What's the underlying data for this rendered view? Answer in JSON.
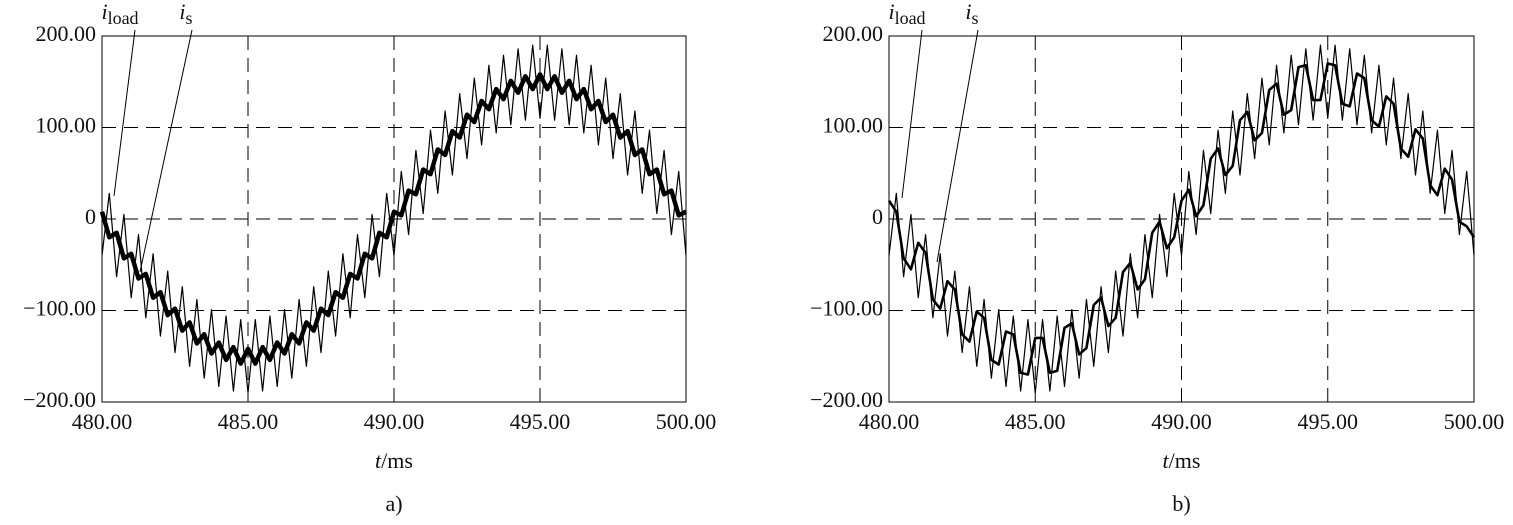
{
  "chart_data": [
    {
      "type": "line",
      "panel_label": "a)",
      "xlabel": "t/ms",
      "x": [
        480,
        480.25,
        480.5,
        480.75,
        481,
        481.25,
        481.5,
        481.75,
        482,
        482.25,
        482.5,
        482.75,
        483,
        483.25,
        483.5,
        483.75,
        484,
        484.25,
        484.5,
        484.75,
        485,
        485.25,
        485.5,
        485.75,
        486,
        486.25,
        486.5,
        486.75,
        487,
        487.25,
        487.5,
        487.75,
        488,
        488.25,
        488.5,
        488.75,
        489,
        489.25,
        489.5,
        489.75,
        490,
        490.25,
        490.5,
        490.75,
        491,
        491.25,
        491.5,
        491.75,
        492,
        492.25,
        492.5,
        492.75,
        493,
        493.25,
        493.5,
        493.75,
        494,
        494.25,
        494.5,
        494.75,
        495,
        495.25,
        495.5,
        495.75,
        496,
        496.25,
        496.5,
        496.75,
        497,
        497.25,
        497.5,
        497.75,
        498,
        498.25,
        498.5,
        498.75,
        499,
        499.25,
        499.5,
        499.75,
        500
      ],
      "series": [
        {
          "name": "iload",
          "color": "#000000",
          "values": [
            -40,
            28,
            -63,
            5,
            -86,
            -17,
            -108,
            -38,
            -128,
            -57,
            -146,
            -74,
            -161,
            -88,
            -174,
            -99,
            -183,
            -106,
            -188,
            -110,
            -190,
            -110,
            -188,
            -106,
            -183,
            -99,
            -174,
            -88,
            -161,
            -74,
            -146,
            -57,
            -128,
            -38,
            -108,
            -17,
            -86,
            5,
            -63,
            28,
            -40,
            52,
            -17,
            75,
            6,
            97,
            28,
            118,
            48,
            137,
            66,
            154,
            81,
            168,
            94,
            179,
            103,
            186,
            108,
            190,
            110,
            190,
            108,
            186,
            103,
            179,
            94,
            168,
            81,
            154,
            66,
            137,
            48,
            118,
            28,
            97,
            6,
            75,
            -17,
            52,
            -40
          ]
        },
        {
          "name": "is",
          "color": "#000000",
          "values": [
            8,
            -20,
            -15,
            -43,
            -38,
            -65,
            -60,
            -86,
            -80,
            -105,
            -98,
            -122,
            -113,
            -136,
            -126,
            -147,
            -135,
            -154,
            -140,
            -158,
            -142,
            -158,
            -140,
            -154,
            -135,
            -147,
            -126,
            -136,
            -113,
            -122,
            -98,
            -105,
            -80,
            -86,
            -60,
            -65,
            -38,
            -43,
            -15,
            -20,
            8,
            4,
            31,
            27,
            54,
            49,
            76,
            70,
            96,
            89,
            114,
            106,
            129,
            120,
            142,
            131,
            151,
            138,
            156,
            142,
            158,
            142,
            156,
            138,
            151,
            131,
            142,
            120,
            129,
            106,
            114,
            89,
            96,
            70,
            76,
            49,
            54,
            27,
            31,
            4,
            8
          ]
        }
      ],
      "xlim": [
        480,
        500
      ],
      "ylim": [
        -200,
        200
      ],
      "xticks": [
        {
          "value": 480,
          "label": "480.00"
        },
        {
          "value": 485,
          "label": "485.00"
        },
        {
          "value": 490,
          "label": "490.00"
        },
        {
          "value": 495,
          "label": "495.00"
        },
        {
          "value": 500,
          "label": "500.00"
        }
      ],
      "yticks": [
        {
          "value": 200,
          "label": "200.00"
        },
        {
          "value": 100,
          "label": "100.00"
        },
        0,
        {
          "value": -100,
          "label": "−100.00"
        },
        {
          "value": -200,
          "label": "−200.00"
        }
      ],
      "grid": true
    },
    {
      "type": "line",
      "panel_label": "b)",
      "xlabel": "t/ms",
      "x": [
        480,
        480.25,
        480.5,
        480.75,
        481,
        481.25,
        481.5,
        481.75,
        482,
        482.25,
        482.5,
        482.75,
        483,
        483.25,
        483.5,
        483.75,
        484,
        484.25,
        484.5,
        484.75,
        485,
        485.25,
        485.5,
        485.75,
        486,
        486.25,
        486.5,
        486.75,
        487,
        487.25,
        487.5,
        487.75,
        488,
        488.25,
        488.5,
        488.75,
        489,
        489.25,
        489.5,
        489.75,
        490,
        490.25,
        490.5,
        490.75,
        491,
        491.25,
        491.5,
        491.75,
        492,
        492.25,
        492.5,
        492.75,
        493,
        493.25,
        493.5,
        493.75,
        494,
        494.25,
        494.5,
        494.75,
        495,
        495.25,
        495.5,
        495.75,
        496,
        496.25,
        496.5,
        496.75,
        497,
        497.25,
        497.5,
        497.75,
        498,
        498.25,
        498.5,
        498.75,
        499,
        499.25,
        499.5,
        499.75,
        500
      ],
      "series": [
        {
          "name": "iload",
          "color": "#000000",
          "values": [
            -40,
            28,
            -63,
            5,
            -86,
            -17,
            -108,
            -38,
            -128,
            -57,
            -146,
            -74,
            -161,
            -88,
            -174,
            -99,
            -183,
            -106,
            -188,
            -110,
            -190,
            -110,
            -188,
            -106,
            -183,
            -99,
            -174,
            -88,
            -161,
            -74,
            -146,
            -57,
            -128,
            -38,
            -108,
            -17,
            -86,
            5,
            -63,
            28,
            -40,
            52,
            -17,
            75,
            6,
            97,
            28,
            118,
            48,
            137,
            66,
            154,
            81,
            168,
            94,
            179,
            103,
            186,
            108,
            190,
            110,
            190,
            108,
            186,
            103,
            179,
            94,
            168,
            81,
            154,
            66,
            137,
            48,
            118,
            28,
            97,
            6,
            75,
            -17,
            52,
            -40
          ]
        },
        {
          "name": "is",
          "color": "#000000",
          "values": [
            20,
            8,
            -43,
            -55,
            -26,
            -37,
            -88,
            -98,
            -68,
            -77,
            -126,
            -134,
            -101,
            -108,
            -154,
            -159,
            -123,
            -126,
            -168,
            -170,
            -130,
            -130,
            -168,
            -166,
            -119,
            -114,
            -148,
            -141,
            -94,
            -86,
            -117,
            -108,
            -58,
            -48,
            -77,
            -66,
            -15,
            -3,
            -32,
            -20,
            20,
            32,
            3,
            15,
            66,
            77,
            48,
            58,
            108,
            117,
            86,
            94,
            141,
            148,
            114,
            119,
            166,
            168,
            130,
            130,
            170,
            168,
            126,
            123,
            159,
            154,
            108,
            101,
            134,
            126,
            77,
            68,
            98,
            88,
            37,
            26,
            55,
            43,
            -3,
            -8,
            -20
          ]
        }
      ],
      "xlim": [
        480,
        500
      ],
      "ylim": [
        -200,
        200
      ],
      "xticks": [
        {
          "value": 480,
          "label": "480.00"
        },
        {
          "value": 485,
          "label": "485.00"
        },
        {
          "value": 490,
          "label": "490.00"
        },
        {
          "value": 495,
          "label": "495.00"
        },
        {
          "value": 500,
          "label": "500.00"
        }
      ],
      "yticks": [
        {
          "value": 200,
          "label": "200.00"
        },
        {
          "value": 100,
          "label": "100.00"
        },
        0,
        {
          "value": -100,
          "label": "−100.00"
        },
        {
          "value": -200,
          "label": "−200.00"
        }
      ],
      "grid": true
    }
  ]
}
